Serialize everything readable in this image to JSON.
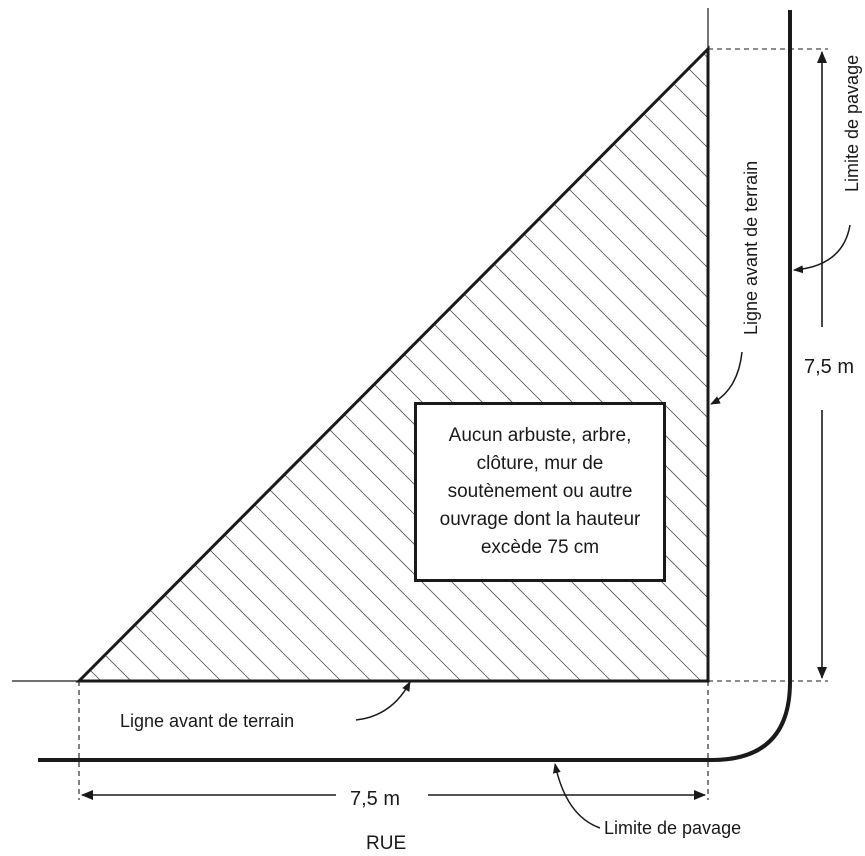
{
  "labels": {
    "front_line_left": "Ligne avant de terrain",
    "front_line_right": "Ligne avant de terrain",
    "paving_limit_right": "Limite de pavage",
    "paving_limit_bottom": "Limite de pavage",
    "dimension_vertical": "7,5 m",
    "dimension_horizontal": "7,5 m",
    "street": "RUE"
  },
  "notice": "Aucun arbuste, arbre, clôture, mur de soutènement ou autre ouvrage dont la hauteur excède 75 cm"
}
